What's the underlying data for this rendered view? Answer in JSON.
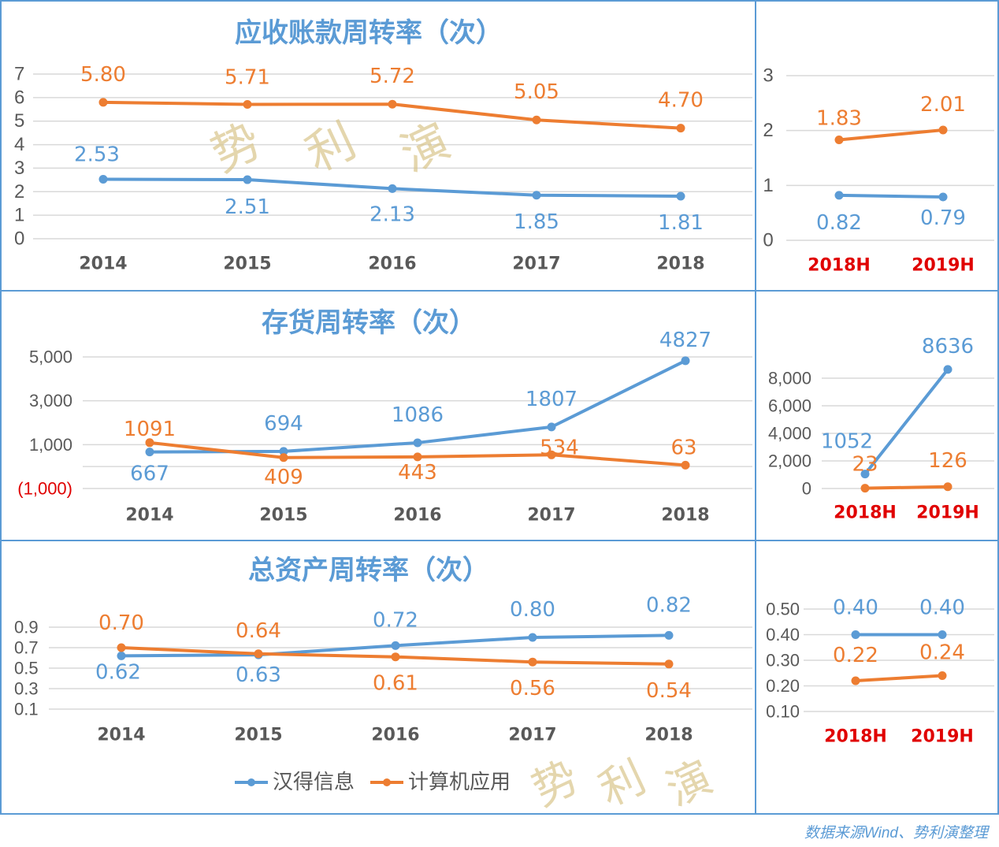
{
  "colors": {
    "hand_info": "#5B9BD5",
    "computer_app": "#ED7D31",
    "axis_text": "#595959",
    "h_label": "#E00000",
    "watermark": "#D9C48A"
  },
  "legend": [
    {
      "name": "汉得信息",
      "color": "#5B9BD5"
    },
    {
      "name": "计算机应用",
      "color": "#ED7D31"
    }
  ],
  "watermark": "势利演",
  "footer": "数据来源Wind、势利演整理",
  "chart_data": [
    {
      "type": "line",
      "title": "应收账款周转率（次）",
      "categories": [
        "2014",
        "2015",
        "2016",
        "2017",
        "2018"
      ],
      "ylim": [
        0,
        7
      ],
      "yticks": [
        {
          "v": 0,
          "label": "0"
        },
        {
          "v": 1,
          "label": "1"
        },
        {
          "v": 2,
          "label": "2"
        },
        {
          "v": 3,
          "label": "3"
        },
        {
          "v": 4,
          "label": "4"
        },
        {
          "v": 5,
          "label": "5"
        },
        {
          "v": 6,
          "label": "6"
        },
        {
          "v": 7,
          "label": "7"
        }
      ],
      "grid": true,
      "series": [
        {
          "name": "汉得信息",
          "values": [
            2.53,
            2.51,
            2.13,
            1.85,
            1.81
          ],
          "labels": [
            "2.53",
            "2.51",
            "2.13",
            "1.85",
            "1.81"
          ]
        },
        {
          "name": "计算机应用",
          "values": [
            5.8,
            5.71,
            5.72,
            5.05,
            4.7
          ],
          "labels": [
            "5.80",
            "5.71",
            "5.72",
            "5.05",
            "4.70"
          ]
        }
      ]
    },
    {
      "type": "line",
      "title": "",
      "categories": [
        "2018H",
        "2019H"
      ],
      "ylim": [
        0,
        3
      ],
      "yticks": [
        {
          "v": 0,
          "label": "0"
        },
        {
          "v": 1,
          "label": "1"
        },
        {
          "v": 2,
          "label": "2"
        },
        {
          "v": 3,
          "label": "3"
        }
      ],
      "grid": true,
      "series": [
        {
          "name": "汉得信息",
          "values": [
            0.82,
            0.79
          ],
          "labels": [
            "0.82",
            "0.79"
          ]
        },
        {
          "name": "计算机应用",
          "values": [
            1.83,
            2.01
          ],
          "labels": [
            "1.83",
            "2.01"
          ]
        }
      ]
    },
    {
      "type": "line",
      "title": "存货周转率（次）",
      "categories": [
        "2014",
        "2015",
        "2016",
        "2017",
        "2018"
      ],
      "ylim": [
        -1000,
        5000
      ],
      "yticks": [
        {
          "v": -1000,
          "label": "(1,000)",
          "negative": true
        },
        {
          "v": 0,
          "label": ""
        },
        {
          "v": 1000,
          "label": "1,000"
        },
        {
          "v": 3000,
          "label": "3,000"
        },
        {
          "v": 5000,
          "label": "5,000"
        }
      ],
      "grid": true,
      "series": [
        {
          "name": "汉得信息",
          "values": [
            667,
            694,
            1086,
            1807,
            4827
          ],
          "labels": [
            "667",
            "694",
            "1086",
            "1807",
            "4827"
          ]
        },
        {
          "name": "计算机应用",
          "values": [
            1091,
            409,
            443,
            534,
            63
          ],
          "labels": [
            "1091",
            "409",
            "443",
            "534",
            "63"
          ]
        }
      ]
    },
    {
      "type": "line",
      "title": "",
      "categories": [
        "2018H",
        "2019H"
      ],
      "ylim": [
        0,
        8000
      ],
      "yticks": [
        {
          "v": 0,
          "label": "0"
        },
        {
          "v": 2000,
          "label": "2,000"
        },
        {
          "v": 4000,
          "label": "4,000"
        },
        {
          "v": 6000,
          "label": "6,000"
        },
        {
          "v": 8000,
          "label": "8,000"
        }
      ],
      "grid": true,
      "series": [
        {
          "name": "汉得信息",
          "values": [
            1052,
            8636
          ],
          "labels": [
            "1052",
            "8636"
          ]
        },
        {
          "name": "计算机应用",
          "values": [
            23,
            126
          ],
          "labels": [
            "23",
            "126"
          ]
        }
      ]
    },
    {
      "type": "line",
      "title": "总资产周转率（次）",
      "categories": [
        "2014",
        "2015",
        "2016",
        "2017",
        "2018"
      ],
      "ylim": [
        0.1,
        0.9
      ],
      "yticks": [
        {
          "v": 0.1,
          "label": "0.1"
        },
        {
          "v": 0.3,
          "label": "0.3"
        },
        {
          "v": 0.5,
          "label": "0.5"
        },
        {
          "v": 0.7,
          "label": "0.7"
        },
        {
          "v": 0.9,
          "label": "0.9"
        }
      ],
      "grid": true,
      "legend": "bottom",
      "series": [
        {
          "name": "汉得信息",
          "values": [
            0.62,
            0.63,
            0.72,
            0.8,
            0.82
          ],
          "labels": [
            "0.62",
            "0.63",
            "0.72",
            "0.80",
            "0.82"
          ]
        },
        {
          "name": "计算机应用",
          "values": [
            0.7,
            0.64,
            0.61,
            0.56,
            0.54
          ],
          "labels": [
            "0.70",
            "0.64",
            "0.61",
            "0.56",
            "0.54"
          ]
        }
      ]
    },
    {
      "type": "line",
      "title": "",
      "categories": [
        "2018H",
        "2019H"
      ],
      "ylim": [
        0.1,
        0.5
      ],
      "yticks": [
        {
          "v": 0.1,
          "label": "0.10"
        },
        {
          "v": 0.2,
          "label": "0.20"
        },
        {
          "v": 0.3,
          "label": "0.30"
        },
        {
          "v": 0.4,
          "label": "0.40"
        },
        {
          "v": 0.5,
          "label": "0.50"
        }
      ],
      "grid": true,
      "series": [
        {
          "name": "汉得信息",
          "values": [
            0.4,
            0.4
          ],
          "labels": [
            "0.40",
            "0.40"
          ]
        },
        {
          "name": "计算机应用",
          "values": [
            0.22,
            0.24
          ],
          "labels": [
            "0.22",
            "0.24"
          ]
        }
      ]
    }
  ]
}
